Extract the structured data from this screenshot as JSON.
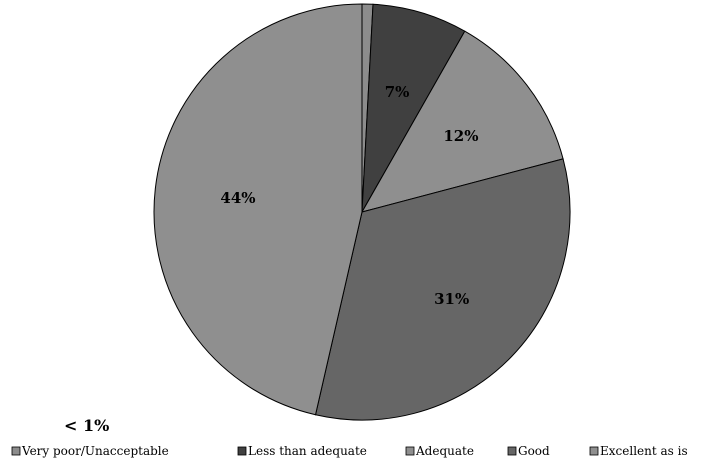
{
  "chart_data": {
    "type": "pie",
    "categories": [
      "Very poor/Unacceptable",
      "Less than adequate",
      "Adequate",
      "Good",
      "Excellent as is"
    ],
    "values": [
      0.8,
      7,
      12,
      31,
      44
    ],
    "slice_labels": [
      "",
      "7%",
      "12%",
      "31%",
      "44%"
    ],
    "colors": [
      "#8c8c8c",
      "#404040",
      "#8f8f8f",
      "#666666",
      "#8f8f8f"
    ],
    "annotation": "< 1%",
    "legend": {
      "position": "bottom",
      "entries": [
        "Very poor/Unacceptable",
        "Less than adequate",
        "Adequate",
        "Good",
        "Excellent as is"
      ]
    },
    "title": "",
    "start_angle": "top, clockwise"
  }
}
